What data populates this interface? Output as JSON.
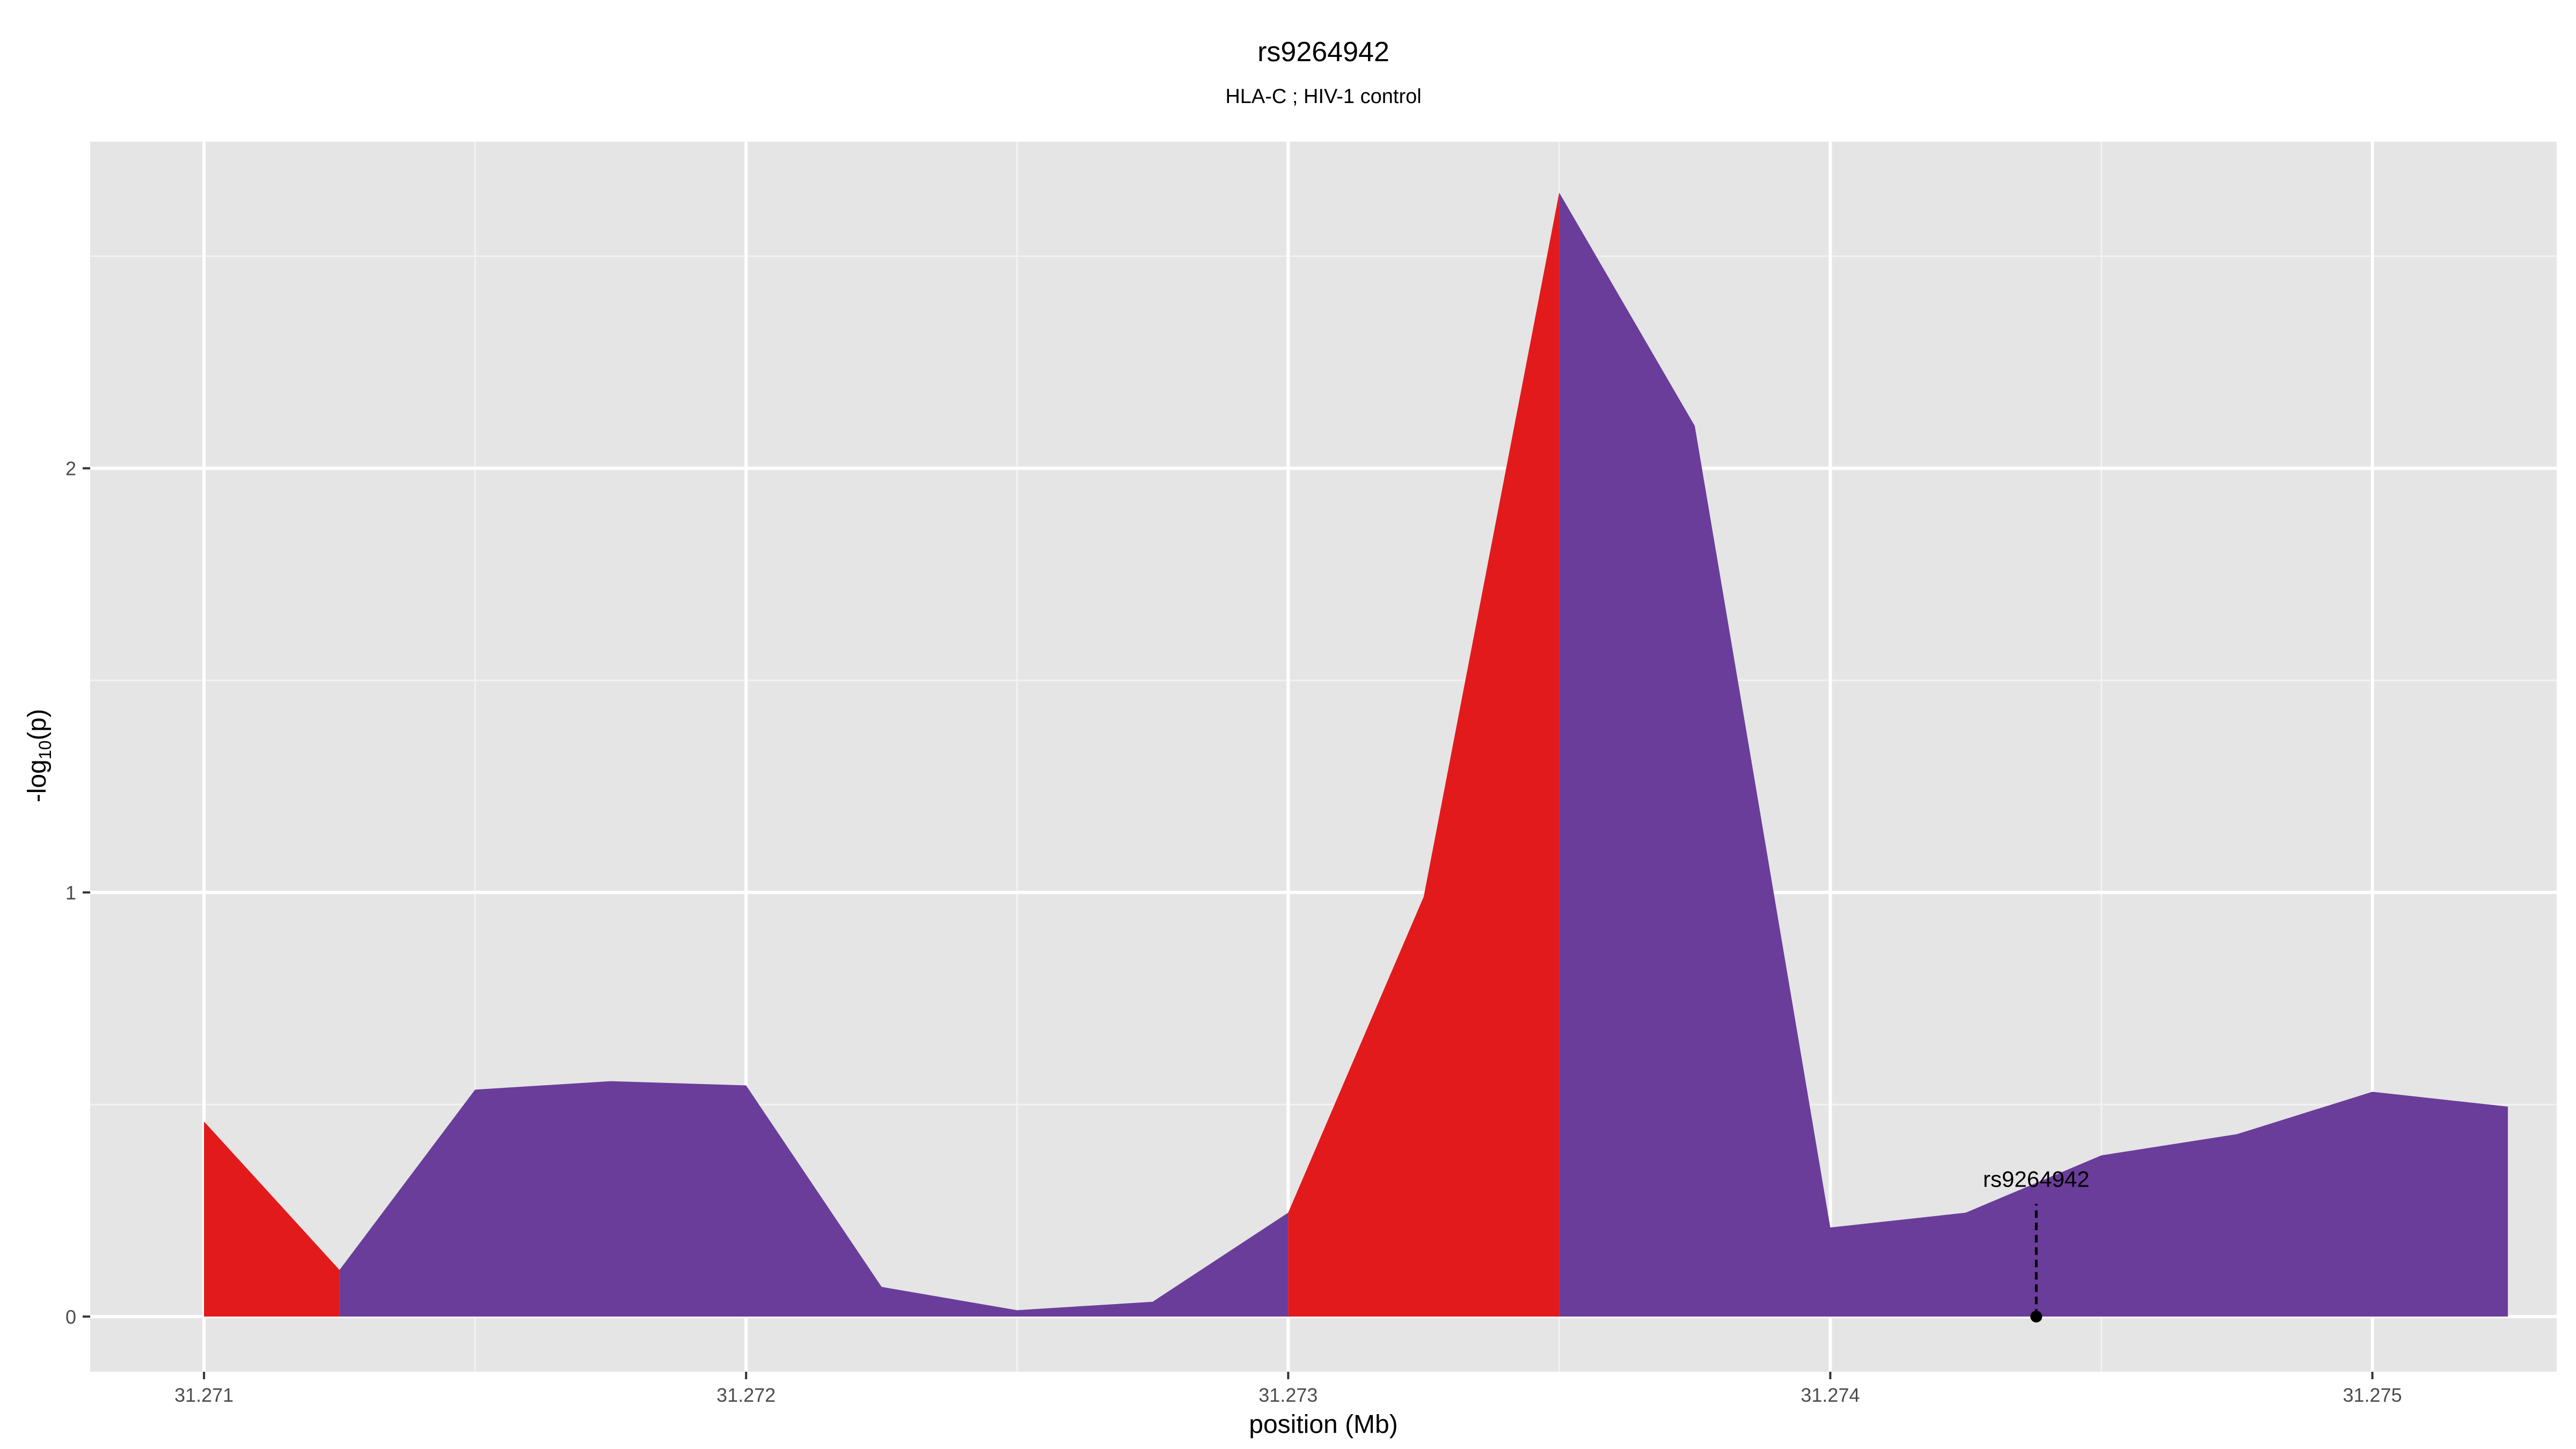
{
  "chart_data": {
    "type": "area",
    "title": "rs9264942",
    "subtitle": "HLA-C ; HIV-1 control",
    "xlabel": "position (Mb)",
    "ylabel_main": "-log",
    "ylabel_sub": "10",
    "ylabel_end": "(p)",
    "xlim": [
      31.27079,
      31.27534
    ],
    "ylim": [
      -0.13,
      2.77
    ],
    "x_ticks": [
      "31.271",
      "31.272",
      "31.273",
      "31.274",
      "31.275"
    ],
    "x_tick_values": [
      31.271,
      31.272,
      31.273,
      31.274,
      31.275
    ],
    "y_ticks": [
      "0",
      "1",
      "2"
    ],
    "y_tick_values": [
      0,
      1,
      2
    ],
    "grid": true,
    "panel_background": "#e5e5e5",
    "segments": [
      {
        "color": "#e31a1c",
        "x": [
          31.271,
          31.27125
        ],
        "y": [
          0.46,
          0.11
        ]
      },
      {
        "color": "#6a3d9a",
        "x": [
          31.27125,
          31.2715,
          31.27175,
          31.272,
          31.27225,
          31.2725,
          31.27275,
          31.273
        ],
        "y": [
          0.11,
          0.535,
          0.555,
          0.545,
          0.07,
          0.015,
          0.035,
          0.245
        ]
      },
      {
        "color": "#e31a1c",
        "x": [
          31.273,
          31.27325,
          31.2735
        ],
        "y": [
          0.245,
          0.99,
          2.65
        ]
      },
      {
        "color": "#6a3d9a",
        "x": [
          31.2735,
          31.27375,
          31.274,
          31.27425,
          31.2745,
          31.27475,
          31.275,
          31.27525
        ],
        "y": [
          2.65,
          2.1,
          0.21,
          0.245,
          0.38,
          0.43,
          0.53,
          0.495
        ]
      }
    ],
    "annotations": [
      {
        "label": "rs9264942",
        "x": 31.27438,
        "y": 0
      }
    ]
  }
}
